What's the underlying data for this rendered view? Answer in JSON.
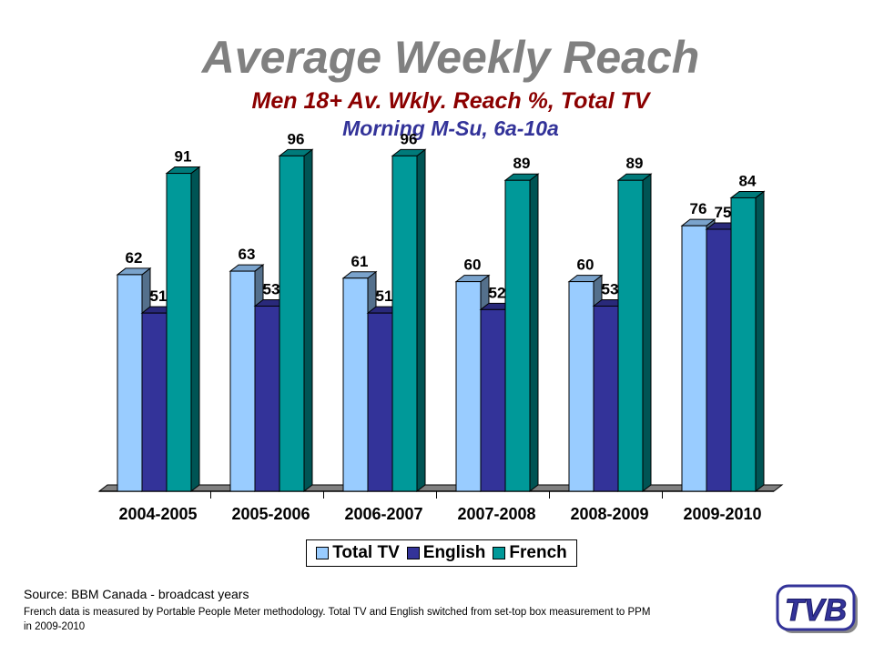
{
  "title": "Average Weekly Reach",
  "subtitle1": "Men 18+ Av. Wkly. Reach %, Total TV",
  "subtitle2": "Morning M-Su, 6a-10a",
  "chart_data": {
    "type": "bar",
    "categories": [
      "2004-2005",
      "2005-2006",
      "2006-2007",
      "2007-2008",
      "2008-2009",
      "2009-2010"
    ],
    "series": [
      {
        "name": "Total TV",
        "values": [
          62,
          63,
          61,
          60,
          60,
          76
        ],
        "color": "#99ccff"
      },
      {
        "name": "English",
        "values": [
          51,
          53,
          51,
          52,
          53,
          75
        ],
        "color": "#333399"
      },
      {
        "name": "French",
        "values": [
          91,
          96,
          96,
          89,
          89,
          84
        ],
        "color": "#009999"
      }
    ],
    "data_labels": [
      [
        "62",
        "51",
        "91"
      ],
      [
        "63",
        "53",
        "96"
      ],
      [
        "61",
        "51",
        "96"
      ],
      [
        "60",
        "52",
        "89"
      ],
      [
        "60",
        "53",
        "89"
      ],
      [
        "76",
        "75",
        "84"
      ]
    ],
    "ylim": [
      0,
      100
    ],
    "grid": false,
    "legend_position": "bottom",
    "style": "3d-clustered-columns"
  },
  "source": "Source: BBM Canada - broadcast years",
  "note": "French data is measured by Portable People Meter methodology. Total TV and English switched from set-top box measurement  to PPM in 2009-2010",
  "logo": {
    "text": "TVB",
    "color": "#333399"
  }
}
